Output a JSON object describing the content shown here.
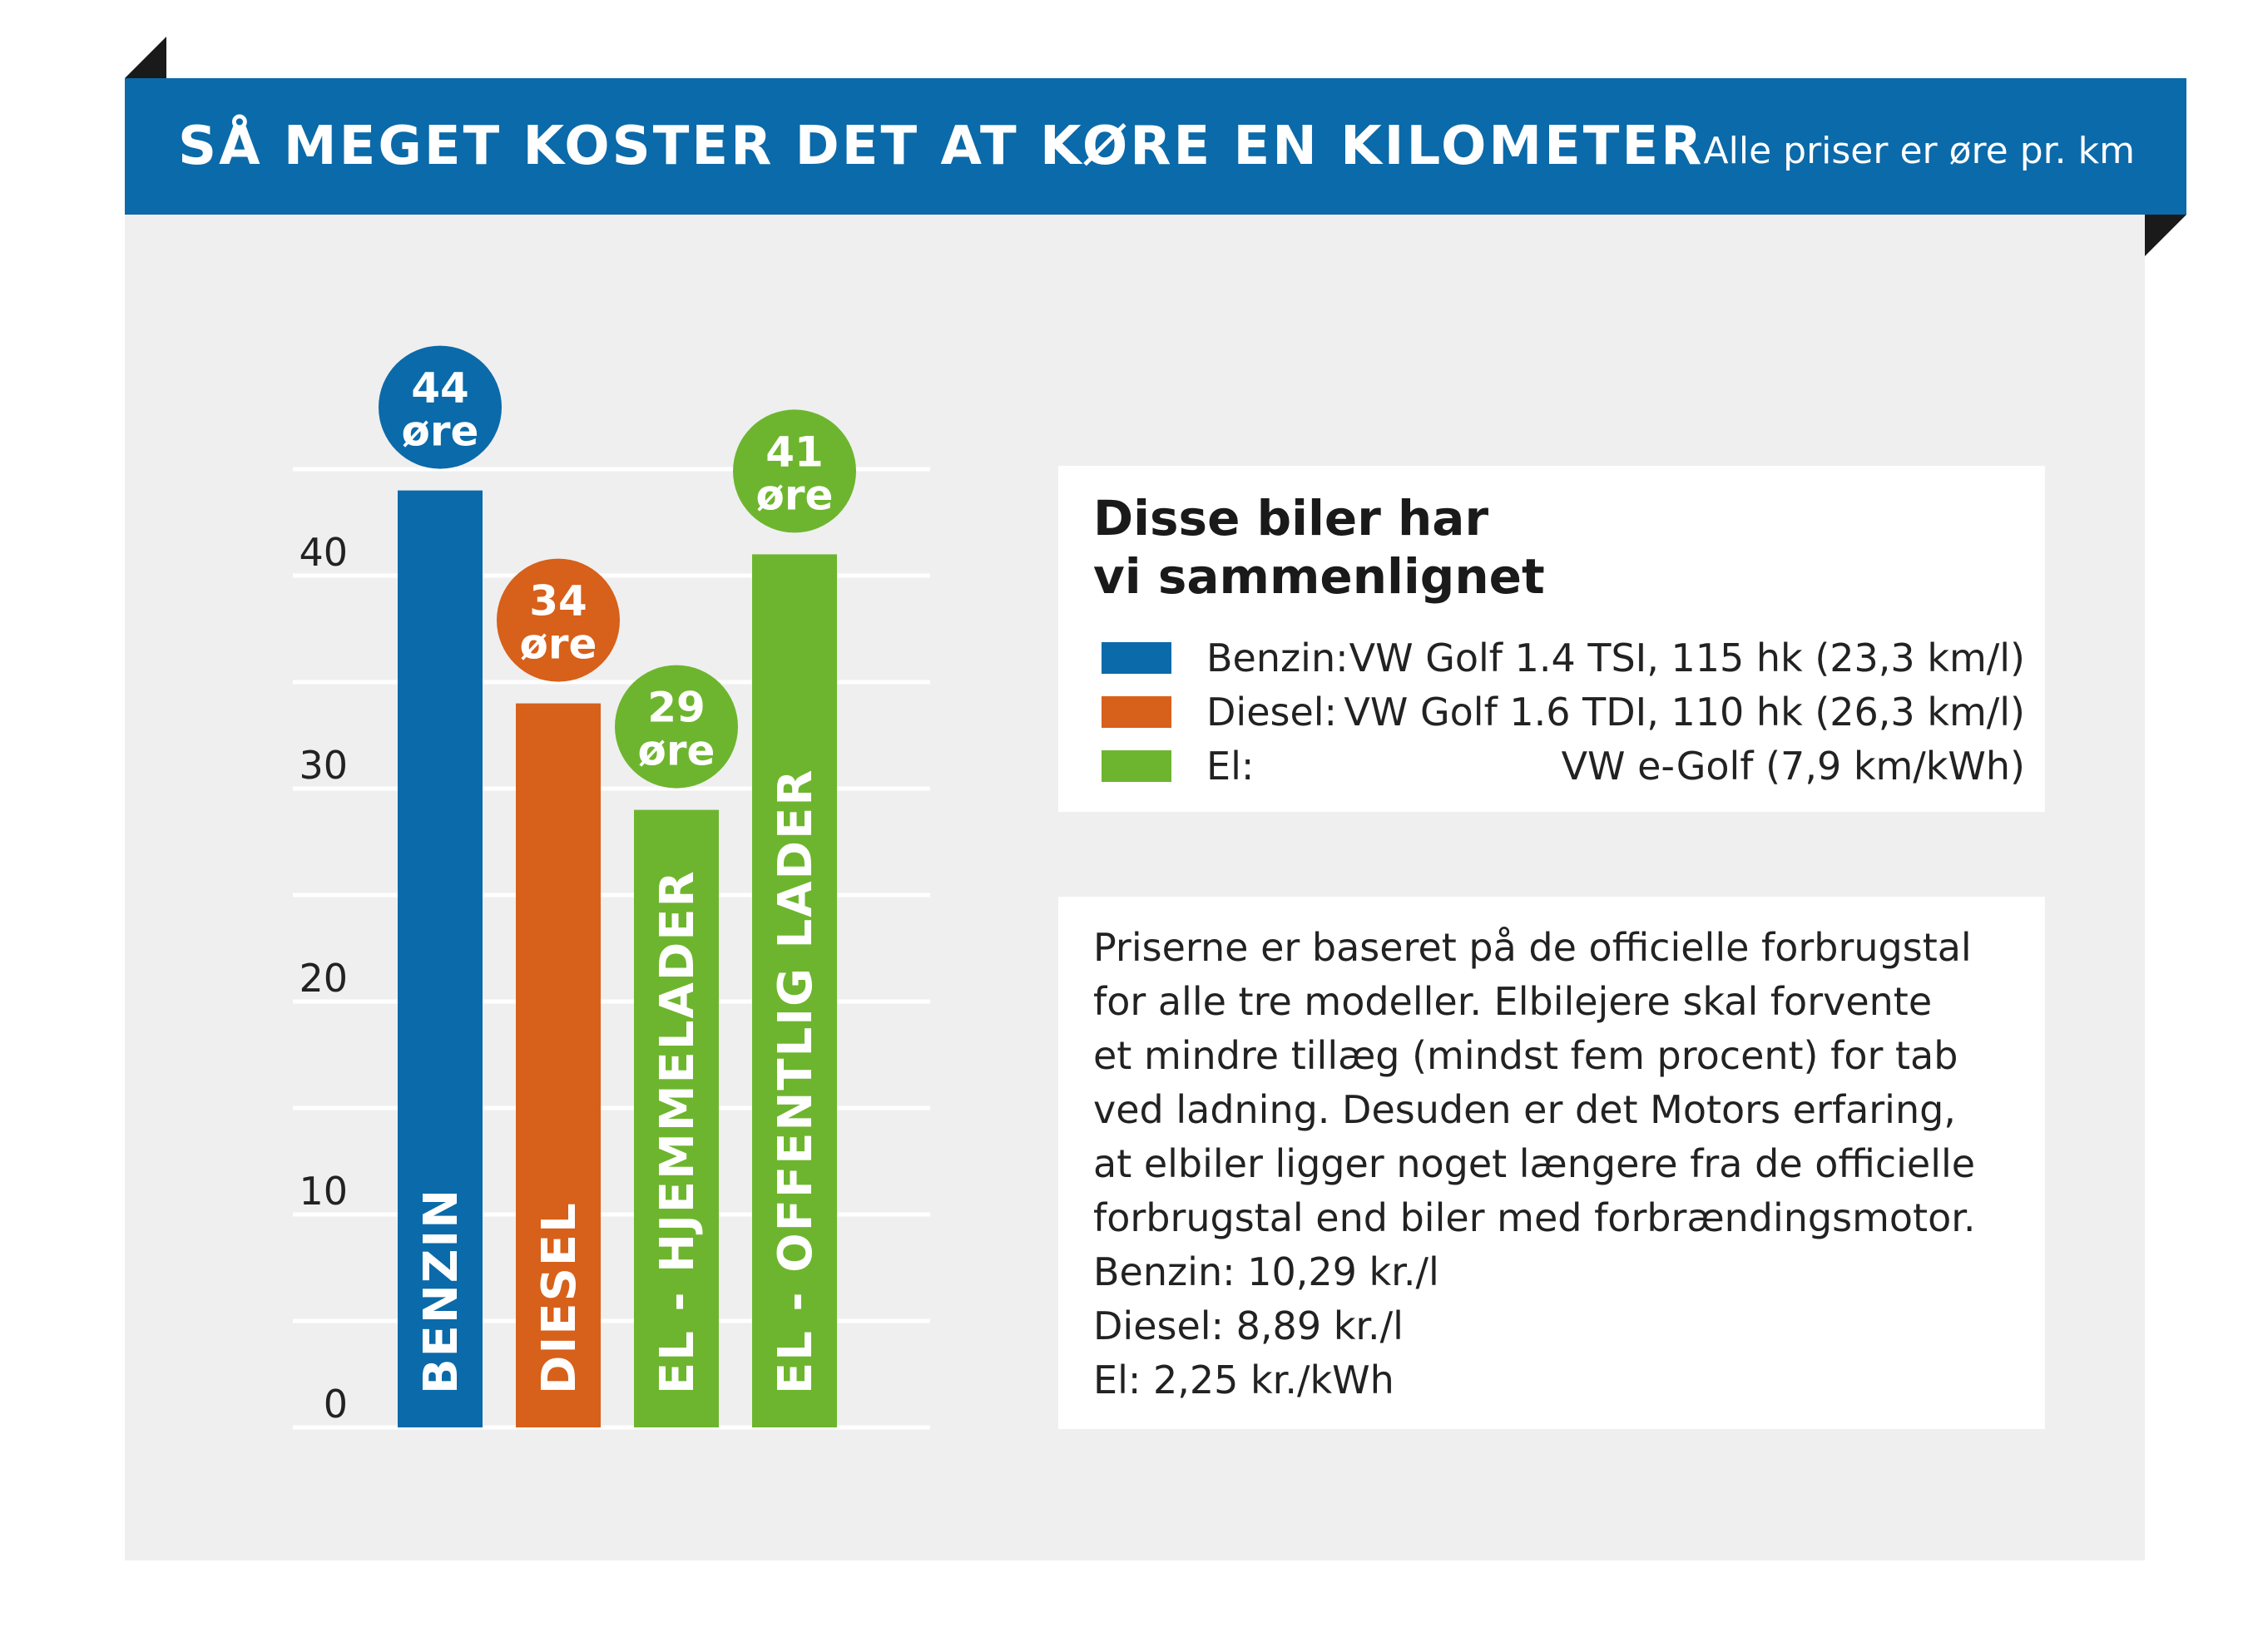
{
  "header": {
    "title": "SÅ MEGET KOSTER DET AT KØRE EN KILOMETER",
    "subtitle": "Alle priser er øre pr. km"
  },
  "colors": {
    "banner": "#0b6aa9",
    "benzin": "#0b6aa9",
    "diesel": "#d7601a",
    "el": "#6db52e"
  },
  "chart_data": {
    "type": "bar",
    "categories": [
      "BENZIN",
      "DIESEL",
      "EL - HJEMMELADER",
      "EL - OFFENTLIG LADER"
    ],
    "values": [
      44,
      34,
      29,
      41
    ],
    "value_labels": [
      {
        "number": "44",
        "unit": "øre"
      },
      {
        "number": "34",
        "unit": "øre"
      },
      {
        "number": "29",
        "unit": "øre"
      },
      {
        "number": "41",
        "unit": "øre"
      }
    ],
    "bar_colors": [
      "#0b6aa9",
      "#d7601a",
      "#6db52e",
      "#6db52e"
    ],
    "yticks": [
      "0",
      "10",
      "20",
      "30",
      "40"
    ],
    "ylim": [
      0,
      45
    ],
    "grid": true,
    "title": "",
    "xlabel": "",
    "ylabel": ""
  },
  "legend": {
    "title": "Disse biler har\nvi sammenlignet",
    "items": [
      {
        "name": "Benzin:",
        "desc": "VW Golf 1.4 TSI, 115 hk (23,3 km/l)",
        "color": "#0b6aa9"
      },
      {
        "name": "Diesel:",
        "desc": "VW Golf 1.6 TDI, 110 hk (26,3 km/l)",
        "color": "#d7601a"
      },
      {
        "name": "El:",
        "desc": "VW e-Golf (7,9 km/kWh)",
        "color": "#6db52e"
      }
    ]
  },
  "note": {
    "lines": [
      "Priserne er baseret på de officielle forbrugstal",
      "for alle tre modeller. Elbilejere skal forvente",
      "et mindre tillæg (mindst fem procent) for tab",
      "ved ladning. Desuden er det Motors erfaring,",
      "at elbiler ligger noget længere fra de officielle",
      "forbrugstal end biler med forbrændingsmotor.",
      "Benzin: 10,29 kr./l",
      "Diesel: 8,89 kr./l",
      "El: 2,25 kr./kWh"
    ]
  }
}
